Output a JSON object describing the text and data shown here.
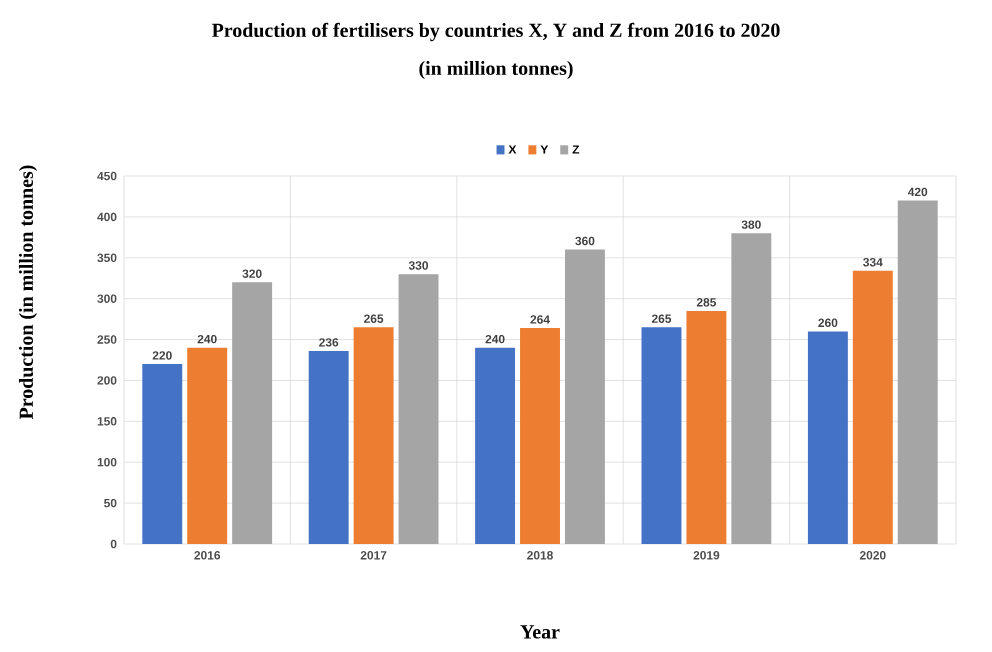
{
  "chart_data": {
    "type": "bar",
    "title": "Production of fertilisers by countries X, Y and Z from 2016 to 2020",
    "subtitle": "(in million tonnes)",
    "xlabel": "Year",
    "ylabel": "Production (in million tonnes)",
    "categories": [
      "2016",
      "2017",
      "2018",
      "2019",
      "2020"
    ],
    "series": [
      {
        "name": "X",
        "color": "#4472c4",
        "values": [
          220,
          236,
          240,
          265,
          260
        ]
      },
      {
        "name": "Y",
        "color": "#ed7d31",
        "values": [
          240,
          265,
          264,
          285,
          334
        ]
      },
      {
        "name": "Z",
        "color": "#a5a5a5",
        "values": [
          320,
          330,
          360,
          380,
          420
        ]
      }
    ],
    "ylim": [
      0,
      450
    ],
    "yticks": [
      0,
      50,
      100,
      150,
      200,
      250,
      300,
      350,
      400,
      450
    ],
    "grid": true,
    "legend": "top",
    "data_labels": true
  }
}
